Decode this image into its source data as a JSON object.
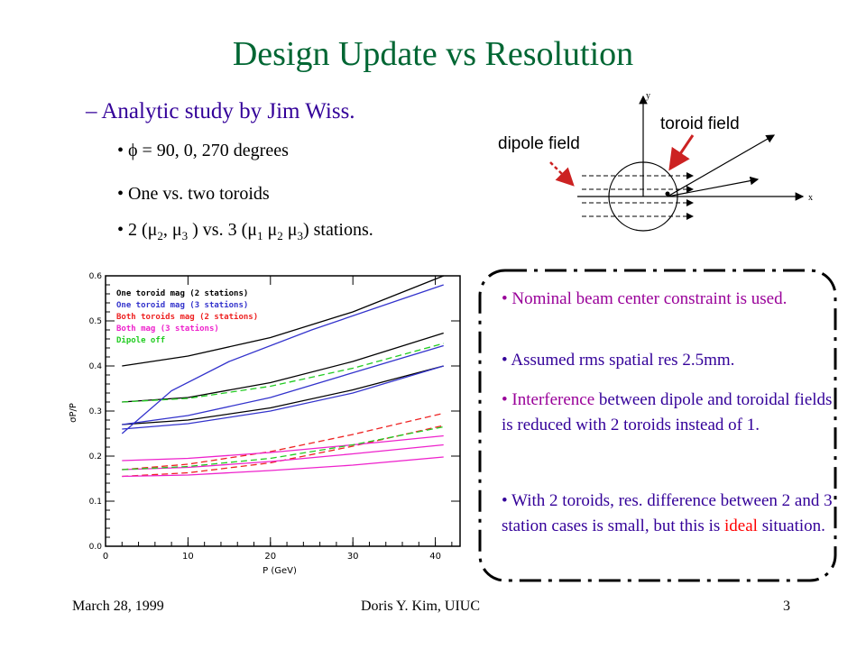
{
  "slide": {
    "title": "Design Update vs Resolution",
    "subtitle": "– Analytic study by Jim Wiss.",
    "bullets": [
      "• ϕ = 90, 0, 270 degrees",
      "• One vs. two toroids"
    ],
    "stations_bullet": {
      "p1": "• 2 (",
      "mu": "μ",
      "s2": "2",
      "comma": ", ",
      "s3": "3",
      "p2": " ) vs. 3 (",
      "s1": "1",
      "sp": " ",
      "p3": ") stations."
    },
    "footer": {
      "date": "March 28, 1999",
      "author": "Doris Y. Kim, UIUC",
      "page": "3"
    }
  },
  "diagram": {
    "dipole_label": "dipole field",
    "toroid_label": "toroid field",
    "x_axis": "x",
    "y_axis": "y"
  },
  "notes": {
    "n1": "• Nominal beam center constraint is used.",
    "n2": "• Assumed rms spatial res 2.5mm.",
    "n3a": "• Interference",
    "n3b": " between dipole and toroidal fields is reduced with 2 toroids instead of 1.",
    "n4a": "• With 2 toroids, res. difference between 2 and 3 station cases is small, but this is ",
    "n4b": "ideal",
    "n4c": " situation."
  },
  "chart_data": {
    "type": "line",
    "xlabel": "P (GeV)",
    "ylabel": "σP/P",
    "xlim": [
      0,
      43
    ],
    "ylim": [
      0,
      0.6
    ],
    "xticks": [
      "0",
      "10",
      "20",
      "30",
      "40"
    ],
    "yticks": [
      "0.0",
      "0.1",
      "0.2",
      "0.3",
      "0.4",
      "0.5",
      "0.6"
    ],
    "legend": [
      {
        "name": "One toroid mag (2 stations)",
        "color": "#000000"
      },
      {
        "name": "One toroid mag (3 stations)",
        "color": "#3333cc"
      },
      {
        "name": "Both toroids mag (2 stations)",
        "color": "#ee2222"
      },
      {
        "name": "Both mag (3 stations)",
        "color": "#ee22cc"
      },
      {
        "name": "Dipole off",
        "color": "#22cc22"
      }
    ],
    "series": [
      {
        "group": 0,
        "dash": false,
        "x": [
          2,
          10,
          20,
          30,
          41
        ],
        "y": [
          0.4,
          0.422,
          0.463,
          0.52,
          0.6
        ]
      },
      {
        "group": 0,
        "dash": false,
        "x": [
          2,
          10,
          20,
          30,
          41
        ],
        "y": [
          0.32,
          0.33,
          0.363,
          0.41,
          0.473
        ]
      },
      {
        "group": 0,
        "dash": false,
        "x": [
          2,
          10,
          20,
          30,
          41
        ],
        "y": [
          0.27,
          0.28,
          0.307,
          0.347,
          0.4
        ]
      },
      {
        "group": 1,
        "dash": false,
        "x": [
          2,
          8,
          15,
          25,
          41
        ],
        "y": [
          0.25,
          0.345,
          0.41,
          0.48,
          0.58
        ]
      },
      {
        "group": 1,
        "dash": false,
        "x": [
          2,
          10,
          20,
          30,
          41
        ],
        "y": [
          0.26,
          0.272,
          0.3,
          0.34,
          0.4
        ]
      },
      {
        "group": 1,
        "dash": false,
        "x": [
          2,
          10,
          20,
          30,
          41
        ],
        "y": [
          0.27,
          0.29,
          0.33,
          0.385,
          0.445
        ]
      },
      {
        "group": 2,
        "dash": true,
        "x": [
          2,
          10,
          20,
          30,
          41
        ],
        "y": [
          0.17,
          0.182,
          0.21,
          0.248,
          0.295
        ]
      },
      {
        "group": 2,
        "dash": true,
        "x": [
          2,
          10,
          20,
          30,
          41
        ],
        "y": [
          0.155,
          0.163,
          0.185,
          0.222,
          0.268
        ]
      },
      {
        "group": 3,
        "dash": false,
        "x": [
          2,
          10,
          20,
          30,
          41
        ],
        "y": [
          0.19,
          0.195,
          0.208,
          0.225,
          0.245
        ]
      },
      {
        "group": 3,
        "dash": false,
        "x": [
          2,
          10,
          20,
          30,
          41
        ],
        "y": [
          0.17,
          0.175,
          0.188,
          0.205,
          0.225
        ]
      },
      {
        "group": 3,
        "dash": false,
        "x": [
          2,
          10,
          20,
          30,
          41
        ],
        "y": [
          0.155,
          0.158,
          0.168,
          0.18,
          0.198
        ]
      },
      {
        "group": 4,
        "dash": true,
        "x": [
          2,
          10,
          20,
          30,
          41
        ],
        "y": [
          0.32,
          0.328,
          0.355,
          0.395,
          0.45
        ]
      },
      {
        "group": 4,
        "dash": true,
        "x": [
          2,
          10,
          20,
          30,
          41
        ],
        "y": [
          0.17,
          0.177,
          0.195,
          0.225,
          0.265
        ]
      }
    ]
  }
}
